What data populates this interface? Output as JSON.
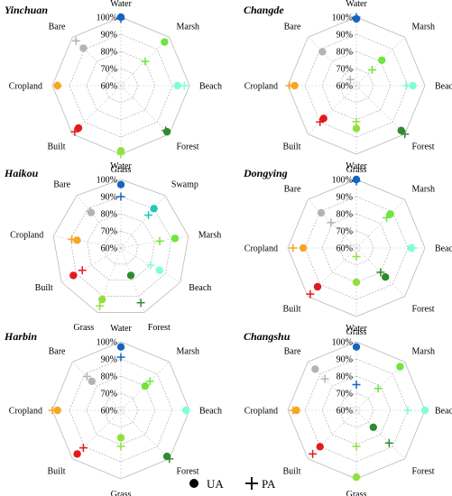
{
  "colors": {
    "Water": "#1565c0",
    "Marsh": "#6ee63c",
    "Swamp": "#20c9b6",
    "Beach": "#7fffd4",
    "Forest": "#2e8b2e",
    "Grass": "#90e040",
    "Built": "#e31a1c",
    "Cropland": "#f5a623",
    "Bare": "#b4b4b4"
  },
  "legend": {
    "ua_label": "UA",
    "pa_label": "PA"
  },
  "chart_data": [
    {
      "type": "radar",
      "title": "Yinchuan",
      "ticks": [
        "60%",
        "70%",
        "80%",
        "90%",
        "100%"
      ],
      "rlim": [
        60,
        100
      ],
      "grid": true,
      "categories": [
        "Water",
        "Marsh",
        "Beach",
        "Forest",
        "Grass",
        "Built",
        "Cropland",
        "Bare"
      ],
      "series": [
        {
          "name": "UA",
          "values": [
            100,
            96,
            93,
            98,
            98,
            95,
            97,
            91
          ]
        },
        {
          "name": "PA",
          "values": [
            99,
            80,
            97,
            97,
            100,
            98,
            97,
            97
          ]
        }
      ]
    },
    {
      "type": "radar",
      "title": "Changde",
      "ticks": [
        "60%",
        "70%",
        "80%",
        "90%",
        "100%"
      ],
      "rlim": [
        60,
        100
      ],
      "grid": true,
      "categories": [
        "Water",
        "Marsh",
        "Beach",
        "Forest",
        "Grass",
        "Built",
        "Cropland",
        "Bare"
      ],
      "series": [
        {
          "name": "UA",
          "values": [
            99,
            81,
            93,
            97,
            85,
            87,
            96,
            88
          ]
        },
        {
          "name": "PA",
          "values": [
            100,
            73,
            89,
            100,
            81,
            90,
            99,
            65
          ]
        }
      ]
    },
    {
      "type": "radar",
      "title": "Haikou",
      "ticks": [
        "60%",
        "70%",
        "80%",
        "90%",
        "100%"
      ],
      "rlim": [
        60,
        100
      ],
      "grid": true,
      "categories": [
        "Water",
        "Swamp",
        "Marsh",
        "Beach",
        "Forest",
        "Grass",
        "Built",
        "Cropland",
        "Bare"
      ],
      "series": [
        {
          "name": "UA",
          "values": [
            97,
            90,
            92,
            86,
            77,
            92,
            92,
            86,
            87
          ]
        },
        {
          "name": "PA",
          "values": [
            90,
            85,
            83,
            80,
            94,
            96,
            86,
            89,
            88
          ]
        }
      ]
    },
    {
      "type": "radar",
      "title": "Dongying",
      "ticks": [
        "60%",
        "70%",
        "80%",
        "90%",
        "100%"
      ],
      "rlim": [
        60,
        100
      ],
      "grid": true,
      "categories": [
        "Water",
        "Marsh",
        "Beach",
        "Forest",
        "Grass",
        "Built",
        "Cropland",
        "Bare"
      ],
      "series": [
        {
          "name": "UA",
          "values": [
            100,
            88,
            92,
            84,
            80,
            92,
            91,
            89
          ]
        },
        {
          "name": "PA",
          "values": [
            99,
            85,
            93,
            80,
            65,
            98,
            97,
            81
          ]
        }
      ]
    },
    {
      "type": "radar",
      "title": "Harbin",
      "ticks": [
        "60%",
        "70%",
        "80%",
        "90%",
        "100%"
      ],
      "rlim": [
        60,
        100
      ],
      "grid": true,
      "categories": [
        "Water",
        "Marsh",
        "Beach",
        "Forest",
        "Grass",
        "Built",
        "Cropland",
        "Bare"
      ],
      "series": [
        {
          "name": "UA",
          "values": [
            97,
            80,
            98,
            98,
            76,
            96,
            97,
            84
          ]
        },
        {
          "name": "PA",
          "values": [
            91,
            84,
            98,
            100,
            81,
            91,
            100,
            88
          ]
        }
      ]
    },
    {
      "type": "radar",
      "title": "Changshu",
      "ticks": [
        "60%",
        "70%",
        "80%",
        "90%",
        "100%"
      ],
      "rlim": [
        60,
        100
      ],
      "grid": true,
      "categories": [
        "Water",
        "Marsh",
        "Beach",
        "Forest",
        "Grass",
        "Built",
        "Cropland",
        "Bare"
      ],
      "series": [
        {
          "name": "UA",
          "values": [
            97,
            96,
            100,
            74,
            99,
            90,
            95,
            94
          ]
        },
        {
          "name": "PA",
          "values": [
            75,
            78,
            90,
            87,
            81,
            96,
            97,
            86
          ]
        }
      ]
    }
  ]
}
